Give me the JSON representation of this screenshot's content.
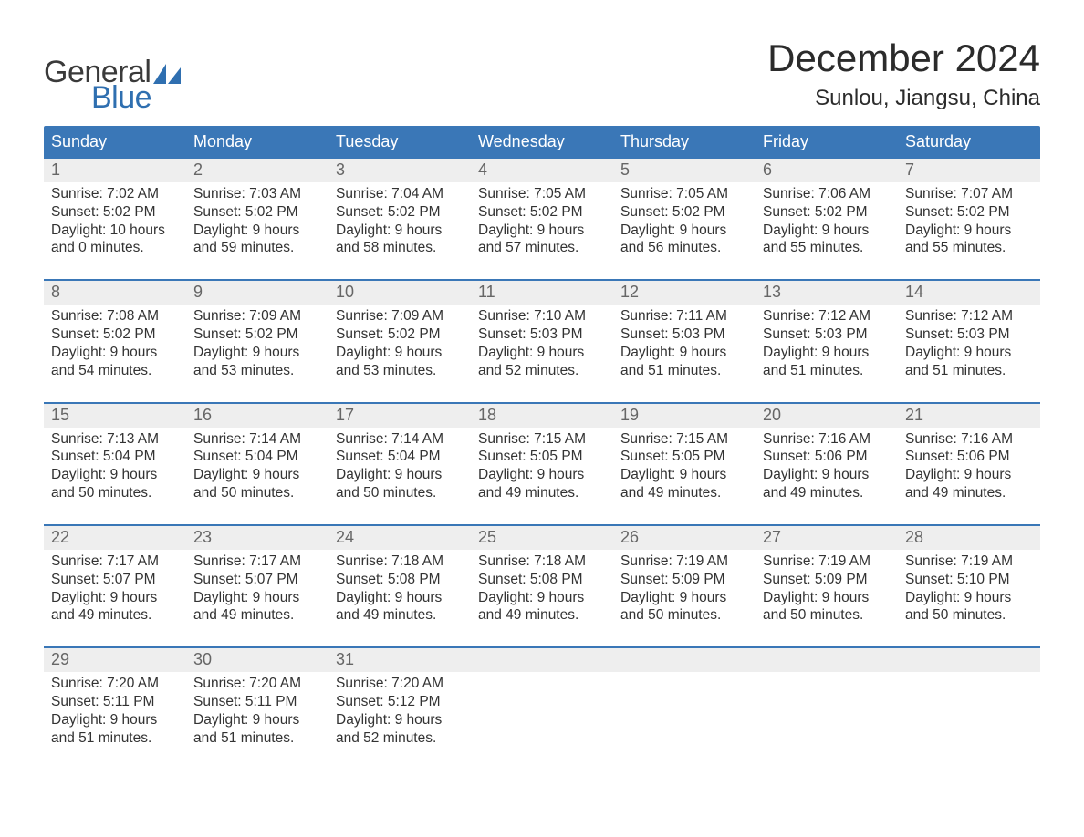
{
  "logo": {
    "general": "General",
    "blue": "Blue"
  },
  "title": "December 2024",
  "location": "Sunlou, Jiangsu, China",
  "colors": {
    "header_bg": "#3a77b7",
    "header_text": "#ffffff",
    "daynum_bg": "#eeeeee",
    "daynum_text": "#666666",
    "body_text": "#333333",
    "rule": "#3a77b7",
    "logo_blue": "#2f6fb0",
    "logo_dark": "#3a3a3a",
    "page_bg": "#ffffff"
  },
  "typography": {
    "title_fontsize": 42,
    "location_fontsize": 24,
    "weekday_fontsize": 18,
    "daynum_fontsize": 18,
    "body_fontsize": 15.5,
    "font_family": "Arial"
  },
  "weekdays": [
    "Sunday",
    "Monday",
    "Tuesday",
    "Wednesday",
    "Thursday",
    "Friday",
    "Saturday"
  ],
  "weeks": [
    [
      {
        "n": "1",
        "sunrise": "Sunrise: 7:02 AM",
        "sunset": "Sunset: 5:02 PM",
        "d1": "Daylight: 10 hours",
        "d2": "and 0 minutes."
      },
      {
        "n": "2",
        "sunrise": "Sunrise: 7:03 AM",
        "sunset": "Sunset: 5:02 PM",
        "d1": "Daylight: 9 hours",
        "d2": "and 59 minutes."
      },
      {
        "n": "3",
        "sunrise": "Sunrise: 7:04 AM",
        "sunset": "Sunset: 5:02 PM",
        "d1": "Daylight: 9 hours",
        "d2": "and 58 minutes."
      },
      {
        "n": "4",
        "sunrise": "Sunrise: 7:05 AM",
        "sunset": "Sunset: 5:02 PM",
        "d1": "Daylight: 9 hours",
        "d2": "and 57 minutes."
      },
      {
        "n": "5",
        "sunrise": "Sunrise: 7:05 AM",
        "sunset": "Sunset: 5:02 PM",
        "d1": "Daylight: 9 hours",
        "d2": "and 56 minutes."
      },
      {
        "n": "6",
        "sunrise": "Sunrise: 7:06 AM",
        "sunset": "Sunset: 5:02 PM",
        "d1": "Daylight: 9 hours",
        "d2": "and 55 minutes."
      },
      {
        "n": "7",
        "sunrise": "Sunrise: 7:07 AM",
        "sunset": "Sunset: 5:02 PM",
        "d1": "Daylight: 9 hours",
        "d2": "and 55 minutes."
      }
    ],
    [
      {
        "n": "8",
        "sunrise": "Sunrise: 7:08 AM",
        "sunset": "Sunset: 5:02 PM",
        "d1": "Daylight: 9 hours",
        "d2": "and 54 minutes."
      },
      {
        "n": "9",
        "sunrise": "Sunrise: 7:09 AM",
        "sunset": "Sunset: 5:02 PM",
        "d1": "Daylight: 9 hours",
        "d2": "and 53 minutes."
      },
      {
        "n": "10",
        "sunrise": "Sunrise: 7:09 AM",
        "sunset": "Sunset: 5:02 PM",
        "d1": "Daylight: 9 hours",
        "d2": "and 53 minutes."
      },
      {
        "n": "11",
        "sunrise": "Sunrise: 7:10 AM",
        "sunset": "Sunset: 5:03 PM",
        "d1": "Daylight: 9 hours",
        "d2": "and 52 minutes."
      },
      {
        "n": "12",
        "sunrise": "Sunrise: 7:11 AM",
        "sunset": "Sunset: 5:03 PM",
        "d1": "Daylight: 9 hours",
        "d2": "and 51 minutes."
      },
      {
        "n": "13",
        "sunrise": "Sunrise: 7:12 AM",
        "sunset": "Sunset: 5:03 PM",
        "d1": "Daylight: 9 hours",
        "d2": "and 51 minutes."
      },
      {
        "n": "14",
        "sunrise": "Sunrise: 7:12 AM",
        "sunset": "Sunset: 5:03 PM",
        "d1": "Daylight: 9 hours",
        "d2": "and 51 minutes."
      }
    ],
    [
      {
        "n": "15",
        "sunrise": "Sunrise: 7:13 AM",
        "sunset": "Sunset: 5:04 PM",
        "d1": "Daylight: 9 hours",
        "d2": "and 50 minutes."
      },
      {
        "n": "16",
        "sunrise": "Sunrise: 7:14 AM",
        "sunset": "Sunset: 5:04 PM",
        "d1": "Daylight: 9 hours",
        "d2": "and 50 minutes."
      },
      {
        "n": "17",
        "sunrise": "Sunrise: 7:14 AM",
        "sunset": "Sunset: 5:04 PM",
        "d1": "Daylight: 9 hours",
        "d2": "and 50 minutes."
      },
      {
        "n": "18",
        "sunrise": "Sunrise: 7:15 AM",
        "sunset": "Sunset: 5:05 PM",
        "d1": "Daylight: 9 hours",
        "d2": "and 49 minutes."
      },
      {
        "n": "19",
        "sunrise": "Sunrise: 7:15 AM",
        "sunset": "Sunset: 5:05 PM",
        "d1": "Daylight: 9 hours",
        "d2": "and 49 minutes."
      },
      {
        "n": "20",
        "sunrise": "Sunrise: 7:16 AM",
        "sunset": "Sunset: 5:06 PM",
        "d1": "Daylight: 9 hours",
        "d2": "and 49 minutes."
      },
      {
        "n": "21",
        "sunrise": "Sunrise: 7:16 AM",
        "sunset": "Sunset: 5:06 PM",
        "d1": "Daylight: 9 hours",
        "d2": "and 49 minutes."
      }
    ],
    [
      {
        "n": "22",
        "sunrise": "Sunrise: 7:17 AM",
        "sunset": "Sunset: 5:07 PM",
        "d1": "Daylight: 9 hours",
        "d2": "and 49 minutes."
      },
      {
        "n": "23",
        "sunrise": "Sunrise: 7:17 AM",
        "sunset": "Sunset: 5:07 PM",
        "d1": "Daylight: 9 hours",
        "d2": "and 49 minutes."
      },
      {
        "n": "24",
        "sunrise": "Sunrise: 7:18 AM",
        "sunset": "Sunset: 5:08 PM",
        "d1": "Daylight: 9 hours",
        "d2": "and 49 minutes."
      },
      {
        "n": "25",
        "sunrise": "Sunrise: 7:18 AM",
        "sunset": "Sunset: 5:08 PM",
        "d1": "Daylight: 9 hours",
        "d2": "and 49 minutes."
      },
      {
        "n": "26",
        "sunrise": "Sunrise: 7:19 AM",
        "sunset": "Sunset: 5:09 PM",
        "d1": "Daylight: 9 hours",
        "d2": "and 50 minutes."
      },
      {
        "n": "27",
        "sunrise": "Sunrise: 7:19 AM",
        "sunset": "Sunset: 5:09 PM",
        "d1": "Daylight: 9 hours",
        "d2": "and 50 minutes."
      },
      {
        "n": "28",
        "sunrise": "Sunrise: 7:19 AM",
        "sunset": "Sunset: 5:10 PM",
        "d1": "Daylight: 9 hours",
        "d2": "and 50 minutes."
      }
    ],
    [
      {
        "n": "29",
        "sunrise": "Sunrise: 7:20 AM",
        "sunset": "Sunset: 5:11 PM",
        "d1": "Daylight: 9 hours",
        "d2": "and 51 minutes."
      },
      {
        "n": "30",
        "sunrise": "Sunrise: 7:20 AM",
        "sunset": "Sunset: 5:11 PM",
        "d1": "Daylight: 9 hours",
        "d2": "and 51 minutes."
      },
      {
        "n": "31",
        "sunrise": "Sunrise: 7:20 AM",
        "sunset": "Sunset: 5:12 PM",
        "d1": "Daylight: 9 hours",
        "d2": "and 52 minutes."
      },
      {
        "empty": true
      },
      {
        "empty": true
      },
      {
        "empty": true
      },
      {
        "empty": true
      }
    ]
  ]
}
